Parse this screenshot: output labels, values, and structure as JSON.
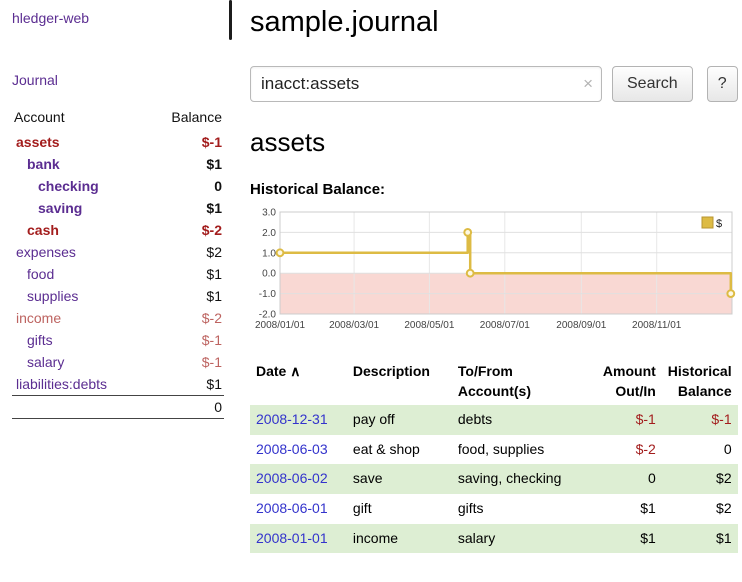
{
  "palette": {
    "link_purple": "#5b2d91",
    "date_link_blue": "#3333cc",
    "negative_red": "#a31d1d",
    "muted_red": "#bd6360",
    "row_highlight_green": "#ddeed3",
    "chart_gold": "#ddbb44",
    "chart_negative_region": "#f9d8d3"
  },
  "sidebar": {
    "app_title": "hledger-web",
    "journal_link": "Journal",
    "accounts": {
      "header_account": "Account",
      "header_balance": "Balance",
      "rows": [
        {
          "name": "assets",
          "balance": "$-1",
          "indent": 0,
          "bold": true,
          "name_color": "red",
          "balance_color": "red"
        },
        {
          "name": "bank",
          "balance": "$1",
          "indent": 1,
          "bold": true,
          "name_color": "purple",
          "balance_color": "black"
        },
        {
          "name": "checking",
          "balance": "0",
          "indent": 2,
          "bold": true,
          "name_color": "purple",
          "balance_color": "black"
        },
        {
          "name": "saving",
          "balance": "$1",
          "indent": 2,
          "bold": true,
          "name_color": "purple",
          "balance_color": "black"
        },
        {
          "name": "cash",
          "balance": "$-2",
          "indent": 1,
          "bold": true,
          "name_color": "red",
          "balance_color": "red"
        },
        {
          "name": "expenses",
          "balance": "$2",
          "indent": 0,
          "bold": false,
          "name_color": "purple",
          "balance_color": "black"
        },
        {
          "name": "food",
          "balance": "$1",
          "indent": 1,
          "bold": false,
          "name_color": "purple",
          "balance_color": "black"
        },
        {
          "name": "supplies",
          "balance": "$1",
          "indent": 1,
          "bold": false,
          "name_color": "purple",
          "balance_color": "black"
        },
        {
          "name": "income",
          "balance": "$-2",
          "indent": 0,
          "bold": false,
          "name_color": "pink",
          "balance_color": "pink"
        },
        {
          "name": "gifts",
          "balance": "$-1",
          "indent": 1,
          "bold": false,
          "name_color": "purple",
          "balance_color": "pink"
        },
        {
          "name": "salary",
          "balance": "$-1",
          "indent": 1,
          "bold": false,
          "name_color": "purple",
          "balance_color": "pink"
        },
        {
          "name": "liabilities:debts",
          "balance": "$1",
          "indent": 0,
          "bold": false,
          "name_color": "purple",
          "balance_color": "black"
        }
      ],
      "total": "0"
    }
  },
  "main": {
    "title": "sample.journal",
    "search": {
      "value": "inacct:assets",
      "clear_icon": "×",
      "search_button": "Search",
      "help_button": "?"
    },
    "account_heading": "assets",
    "chart_title": "Historical Balance:"
  },
  "chart_data": {
    "type": "line",
    "step": true,
    "title": "Historical Balance",
    "series": [
      {
        "name": "$",
        "color": "#ddbb44",
        "points": [
          [
            "2008-01-01",
            1
          ],
          [
            "2008-06-01",
            2
          ],
          [
            "2008-06-03",
            0
          ],
          [
            "2008-12-31",
            -1
          ]
        ]
      }
    ],
    "x_range": [
      "2008-01-01",
      "2009-01-01"
    ],
    "x_ticks": [
      "2008/01/01",
      "2008/03/01",
      "2008/05/01",
      "2008/07/01",
      "2008/09/01",
      "2008/11/01"
    ],
    "y_ticks": [
      3.0,
      2.0,
      1.0,
      0.0,
      -1.0,
      -2.0
    ],
    "ylim": [
      -2,
      3
    ],
    "grid": true,
    "legend_position": "top-right",
    "negative_region_color": "#f9d8d3"
  },
  "register": {
    "headers": [
      "Date",
      "Description",
      "To/From Account(s)",
      "Amount Out/In",
      "Historical Balance"
    ],
    "sort_icon": "∧",
    "rows": [
      {
        "date": "2008-12-31",
        "description": "pay off",
        "accounts": "debts",
        "amount": "$-1",
        "amount_negative": true,
        "balance": "$-1",
        "balance_negative": true,
        "highlight": true
      },
      {
        "date": "2008-06-03",
        "description": "eat & shop",
        "accounts": "food, supplies",
        "amount": "$-2",
        "amount_negative": true,
        "balance": "0",
        "balance_negative": false,
        "highlight": false
      },
      {
        "date": "2008-06-02",
        "description": "save",
        "accounts": "saving, checking",
        "amount": "0",
        "amount_negative": false,
        "balance": "$2",
        "balance_negative": false,
        "highlight": true
      },
      {
        "date": "2008-06-01",
        "description": "gift",
        "accounts": "gifts",
        "amount": "$1",
        "amount_negative": false,
        "balance": "$2",
        "balance_negative": false,
        "highlight": false
      },
      {
        "date": "2008-01-01",
        "description": "income",
        "accounts": "salary",
        "amount": "$1",
        "amount_negative": false,
        "balance": "$1",
        "balance_negative": false,
        "highlight": true
      }
    ]
  }
}
